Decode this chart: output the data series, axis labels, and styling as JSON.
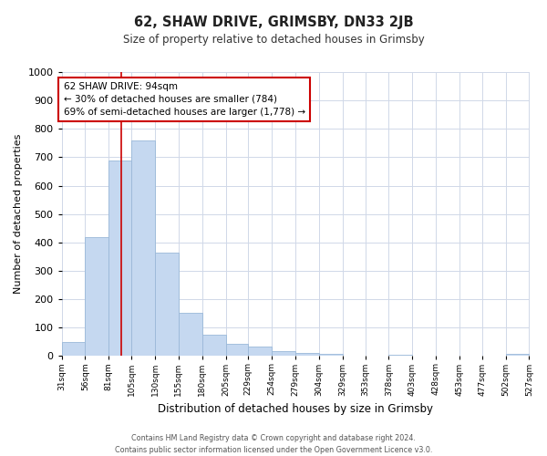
{
  "title": "62, SHAW DRIVE, GRIMSBY, DN33 2JB",
  "subtitle": "Size of property relative to detached houses in Grimsby",
  "xlabel": "Distribution of detached houses by size in Grimsby",
  "ylabel": "Number of detached properties",
  "bar_edges": [
    31,
    56,
    81,
    105,
    130,
    155,
    180,
    205,
    229,
    254,
    279,
    304,
    329,
    353,
    378,
    403,
    428,
    453,
    477,
    502,
    527
  ],
  "bar_heights": [
    50,
    420,
    690,
    760,
    365,
    153,
    75,
    42,
    33,
    18,
    10,
    8,
    0,
    0,
    5,
    0,
    0,
    0,
    0,
    8
  ],
  "bar_color": "#c5d8f0",
  "bar_edge_color": "#9ab8d8",
  "grid_color": "#d0d8e8",
  "property_line_x": 94,
  "property_line_color": "#cc0000",
  "annotation_line1": "62 SHAW DRIVE: 94sqm",
  "annotation_line2": "← 30% of detached houses are smaller (784)",
  "annotation_line3": "69% of semi-detached houses are larger (1,778) →",
  "annotation_box_color": "#ffffff",
  "annotation_box_edge": "#cc0000",
  "ylim": [
    0,
    1000
  ],
  "yticks": [
    0,
    100,
    200,
    300,
    400,
    500,
    600,
    700,
    800,
    900,
    1000
  ],
  "tick_labels": [
    "31sqm",
    "56sqm",
    "81sqm",
    "105sqm",
    "130sqm",
    "155sqm",
    "180sqm",
    "205sqm",
    "229sqm",
    "254sqm",
    "279sqm",
    "304sqm",
    "329sqm",
    "353sqm",
    "378sqm",
    "403sqm",
    "428sqm",
    "453sqm",
    "477sqm",
    "502sqm",
    "527sqm"
  ],
  "footer_line1": "Contains HM Land Registry data © Crown copyright and database right 2024.",
  "footer_line2": "Contains public sector information licensed under the Open Government Licence v3.0."
}
